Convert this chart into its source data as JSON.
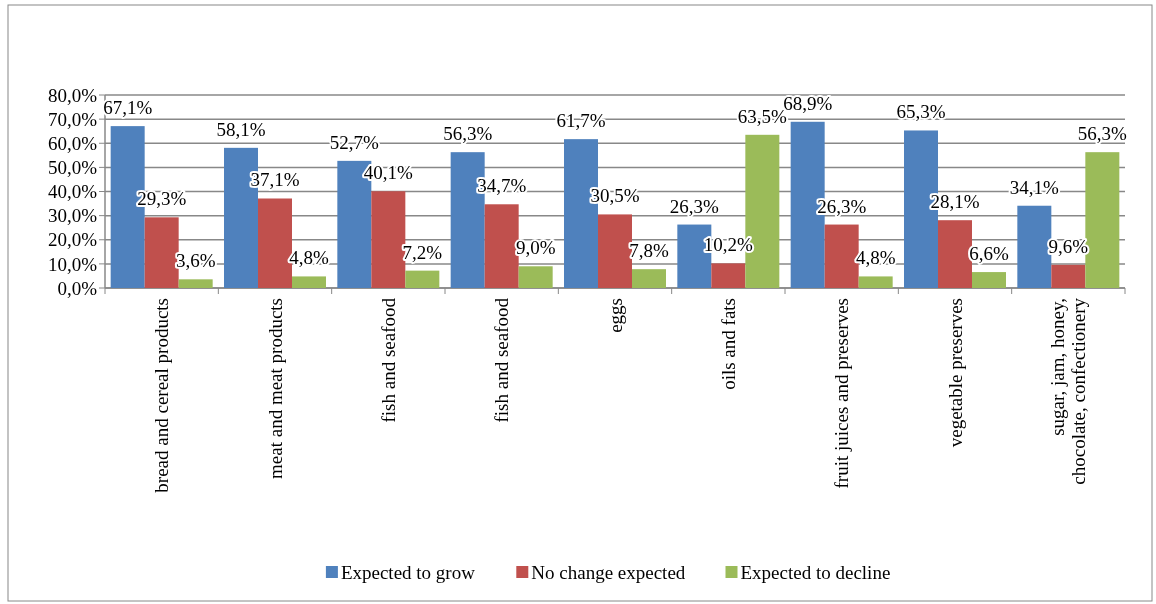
{
  "chart_data": {
    "type": "bar",
    "categories": [
      "bread and cereal products",
      "meat and meat products",
      "fish and seafood",
      "fish and seafood",
      "eggs",
      "oils and fats",
      "fruit juices and preserves",
      "vegetable preserves",
      "sugar, jam, honey, chocolate, confectionery"
    ],
    "series": [
      {
        "name": "Expected to grow",
        "color": "#4f81bd",
        "values": [
          67.1,
          58.1,
          52.7,
          56.3,
          61.7,
          26.3,
          68.9,
          65.3,
          34.1
        ],
        "value_labels": [
          "67,1%",
          "58,1%",
          "52,7%",
          "56,3%",
          "61,7%",
          "26,3%",
          "68,9%",
          "65,3%",
          "34,1%"
        ]
      },
      {
        "name": "No change expected",
        "color": "#c0504d",
        "values": [
          29.3,
          37.1,
          40.1,
          34.7,
          30.5,
          10.2,
          26.3,
          28.1,
          9.6
        ],
        "value_labels": [
          "29,3%",
          "37,1%",
          "40,1%",
          "34,7%",
          "30,5%",
          "10,2%",
          "26,3%",
          "28,1%",
          "9,6%"
        ]
      },
      {
        "name": "Expected to decline",
        "color": "#9bbb59",
        "values": [
          3.6,
          4.8,
          7.2,
          9.0,
          7.8,
          63.5,
          4.8,
          6.6,
          56.3
        ],
        "value_labels": [
          "3,6%",
          "4,8%",
          "7,2%",
          "9,0%",
          "7,8%",
          "63,5%",
          "4,8%",
          "6,6%",
          "56,3%"
        ]
      }
    ],
    "ylim": [
      0,
      80
    ],
    "yticks": [
      {
        "value": 0,
        "label": "0,0%"
      },
      {
        "value": 10,
        "label": "10,0%"
      },
      {
        "value": 20,
        "label": "20,0%"
      },
      {
        "value": 30,
        "label": "30,0%"
      },
      {
        "value": 40,
        "label": "40,0%"
      },
      {
        "value": 50,
        "label": "50,0%"
      },
      {
        "value": 60,
        "label": "60,0%"
      },
      {
        "value": 70,
        "label": "70,0%"
      },
      {
        "value": 80,
        "label": "80,0%"
      }
    ],
    "grid": "y",
    "legend": "bottom"
  }
}
